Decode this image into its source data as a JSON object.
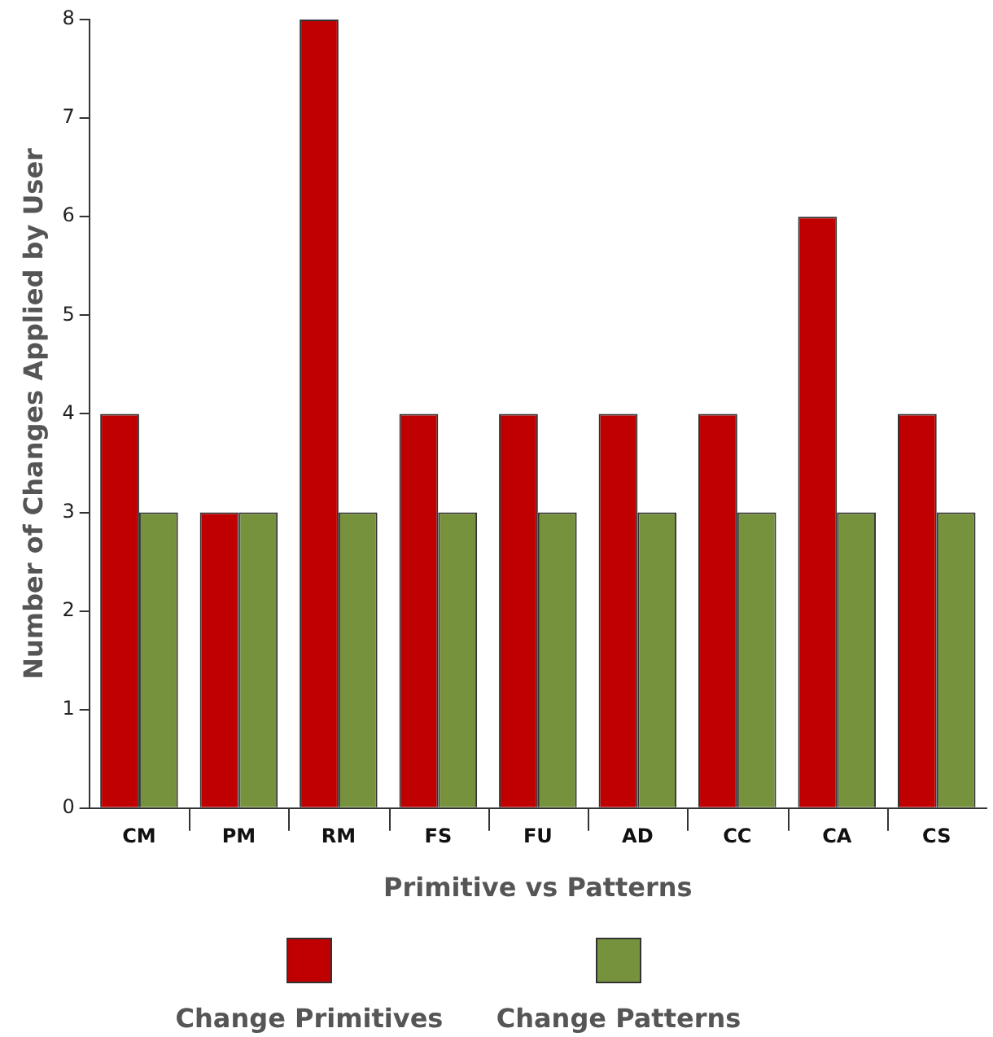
{
  "chart_data": {
    "type": "bar",
    "xlabel": "Primitive vs Patterns",
    "ylabel": "Number of Changes Applied by User",
    "categories": [
      "CM",
      "PM",
      "RM",
      "FS",
      "FU",
      "AD",
      "CC",
      "CA",
      "CS"
    ],
    "series": [
      {
        "name": "Change Primitives",
        "color": "#c00000",
        "values": [
          4,
          3,
          8,
          4,
          4,
          4,
          4,
          6,
          4
        ]
      },
      {
        "name": "Change Patterns",
        "color": "#76923c",
        "values": [
          3,
          3,
          3,
          3,
          3,
          3,
          3,
          3,
          3
        ]
      }
    ],
    "ylim": [
      0,
      8
    ],
    "yticks": [
      0,
      1,
      2,
      3,
      4,
      5,
      6,
      7,
      8
    ],
    "grid": false,
    "legend": "bottom"
  }
}
